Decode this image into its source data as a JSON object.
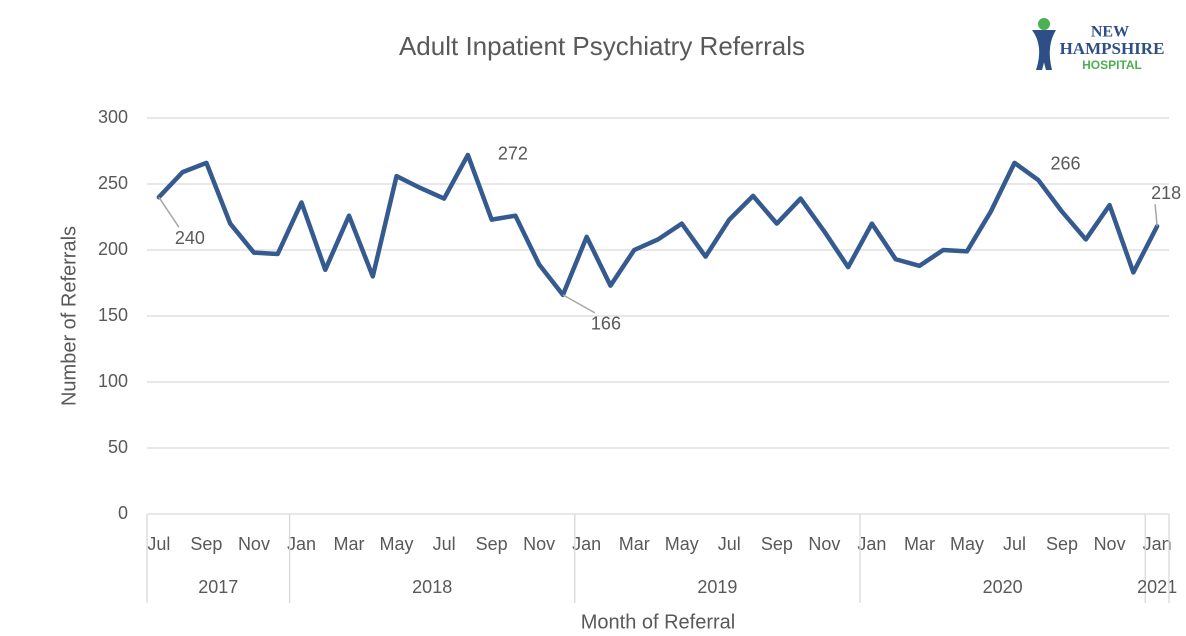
{
  "chart_data": {
    "type": "line",
    "title": "Adult Inpatient Psychiatry Referrals",
    "y_label": "Number of Referrals",
    "x_label": "Month of Referral",
    "logo": {
      "line1": "NEW",
      "line2": "HAMPSHIRE",
      "line3": "HOSPITAL"
    },
    "categories": [
      "Jul",
      null,
      "Sep",
      null,
      "Nov",
      null,
      "Jan",
      null,
      "Mar",
      null,
      "May",
      null,
      "Jul",
      null,
      "Sep",
      null,
      "Nov",
      null,
      "Jan",
      null,
      "Mar",
      null,
      "May",
      null,
      "Jul",
      null,
      "Sep",
      null,
      "Nov",
      null,
      "Jan",
      null,
      "Mar",
      null,
      "May",
      null,
      "Jul",
      null,
      "Sep",
      null,
      "Nov",
      null,
      "Jan"
    ],
    "years": [
      "2017",
      "2018",
      "2019",
      "2020",
      "2021"
    ],
    "series": [
      {
        "name": "Referrals",
        "color": "#345a8f",
        "values": [
          240,
          259,
          266,
          220,
          198,
          197,
          236,
          185,
          226,
          180,
          256,
          247,
          239,
          272,
          223,
          226,
          189,
          166,
          210,
          173,
          200,
          208,
          220,
          195,
          223,
          241,
          220,
          239,
          214,
          187,
          220,
          193,
          188,
          200,
          199,
          229,
          266,
          253,
          229,
          208,
          234,
          183,
          218
        ]
      }
    ],
    "labeled_points": [
      0,
      13,
      17,
      36,
      42
    ],
    "ylim": [
      0,
      300
    ],
    "yticks": [
      0,
      50,
      100,
      150,
      200,
      250,
      300
    ],
    "grid": true
  }
}
